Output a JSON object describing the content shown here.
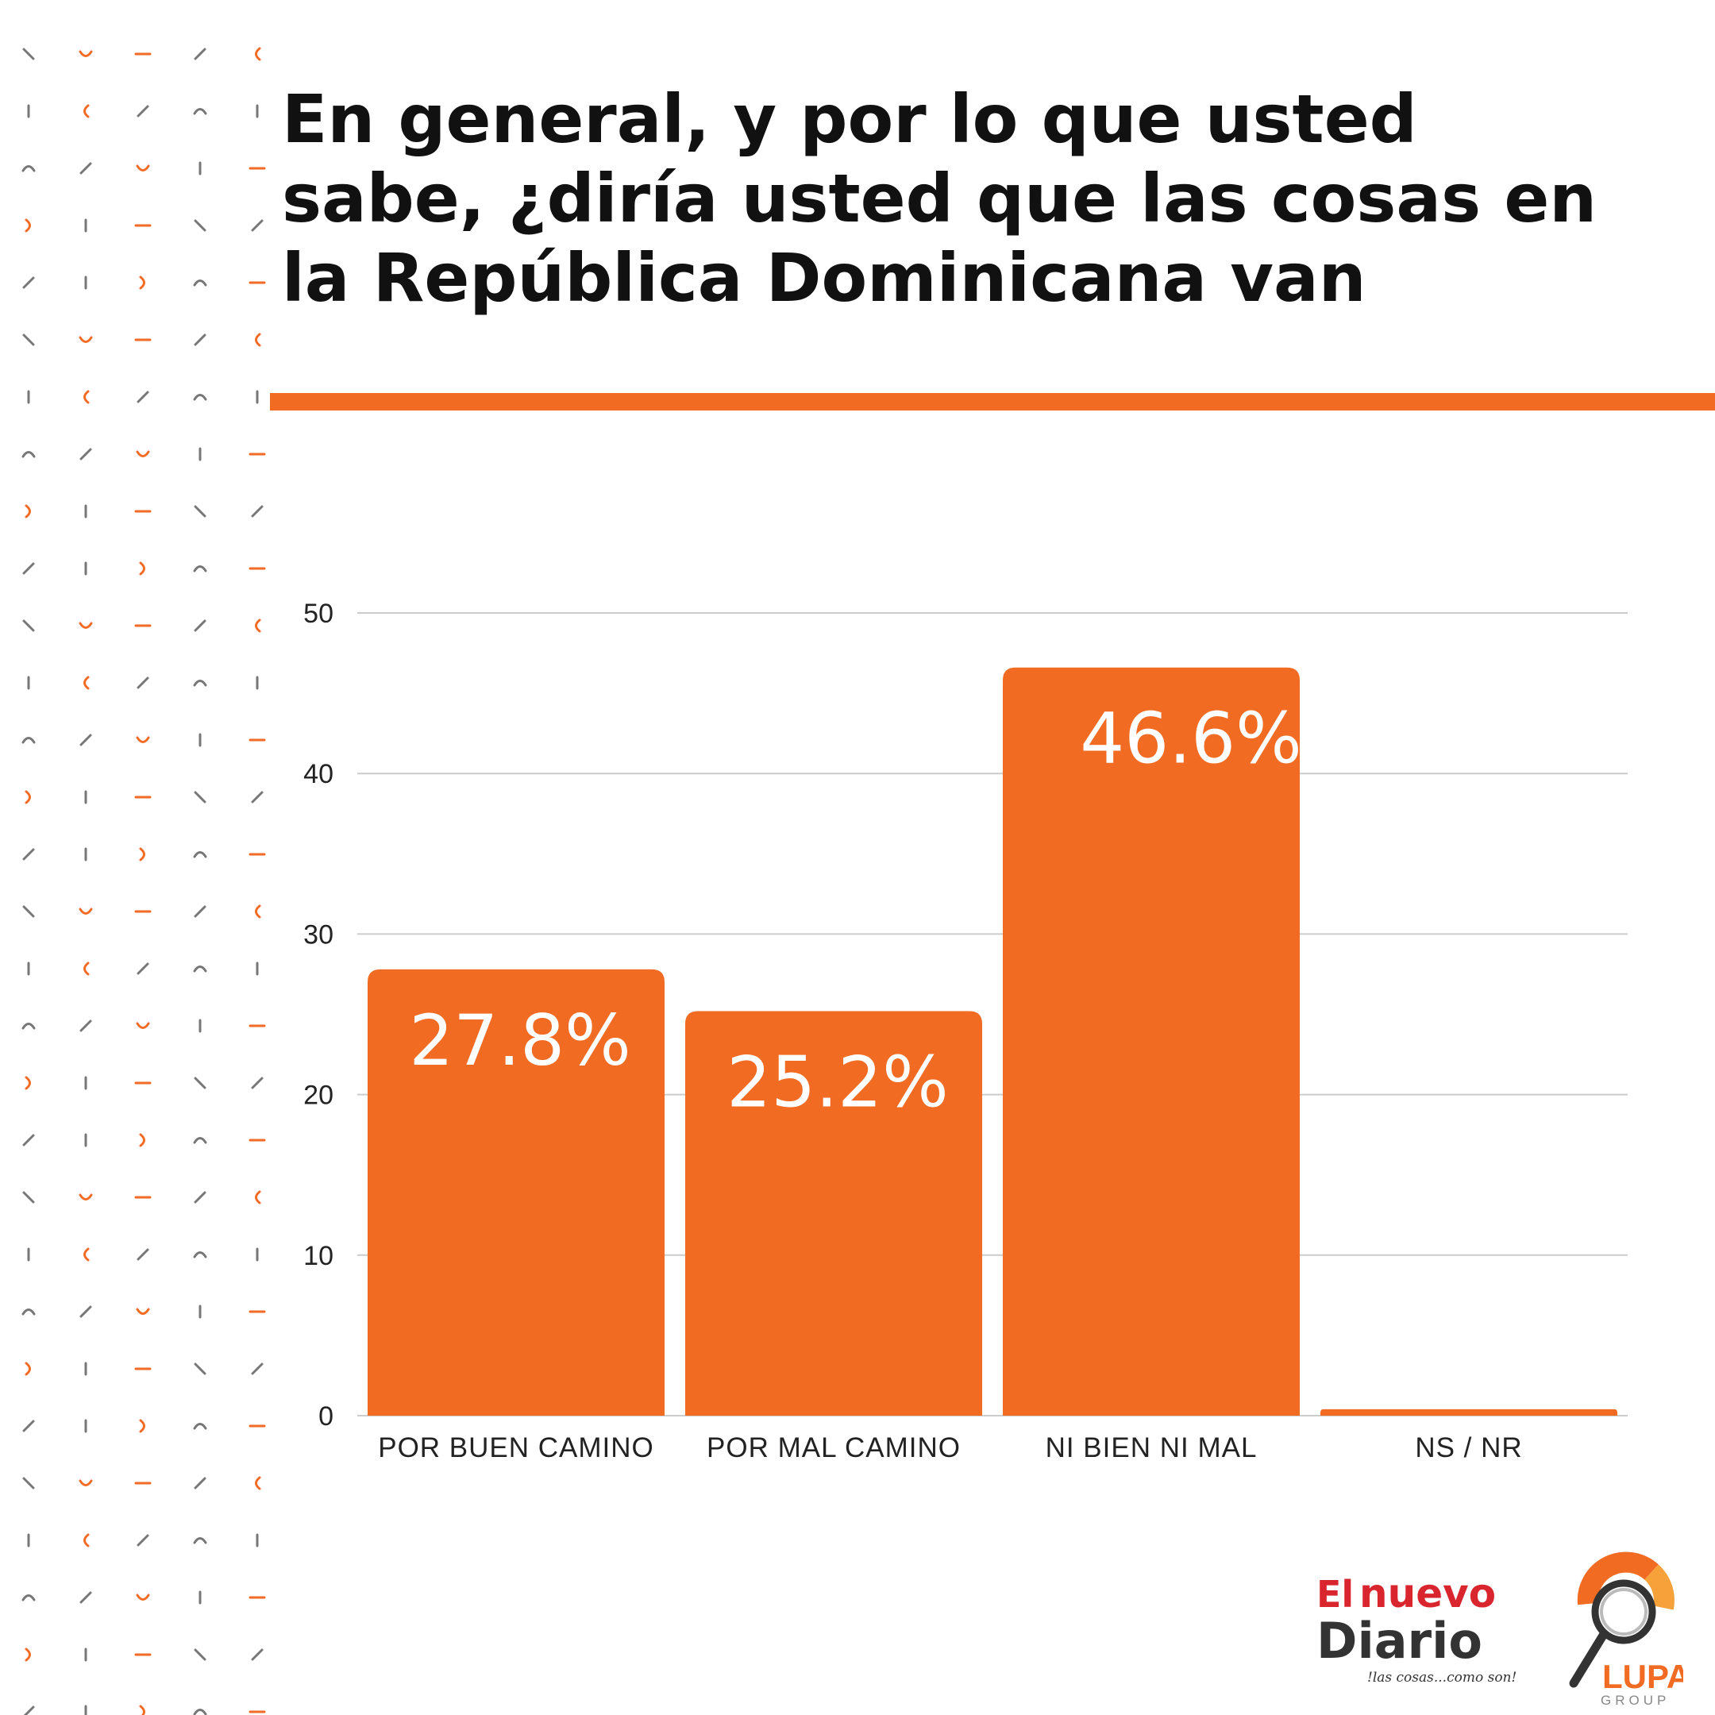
{
  "title": "En general, y por lo que usted sabe, ¿diría usted que las cosas en la República Dominicana van",
  "colors": {
    "accent": "#f26b23",
    "bar": "#f26b23",
    "grid": "#cccccc",
    "pattern_gray": "#777777"
  },
  "chart_data": {
    "type": "bar",
    "title": "En general, y por lo que usted sabe, ¿diría usted que las cosas en la República Dominicana van",
    "categories": [
      "POR BUEN CAMINO",
      "POR MAL CAMINO",
      "NI BIEN NI MAL",
      "NS / NR"
    ],
    "values": [
      27.8,
      25.2,
      46.6,
      0.4
    ],
    "data_labels": [
      "27.8%",
      "25.2%",
      "46.6%",
      ""
    ],
    "yticks": [
      "0",
      "10",
      "20",
      "30",
      "40",
      "50"
    ],
    "ylim": [
      0,
      50
    ],
    "xlabel": "",
    "ylabel": "",
    "grid": true,
    "legend": "none"
  },
  "logos": {
    "el_nuevo_diario": {
      "word1": "El",
      "word2": "nuevo",
      "word3": "Diario",
      "tagline": "!las cosas...como son!"
    },
    "lupa": {
      "name": "LUPA",
      "sub": "GROUP"
    }
  }
}
